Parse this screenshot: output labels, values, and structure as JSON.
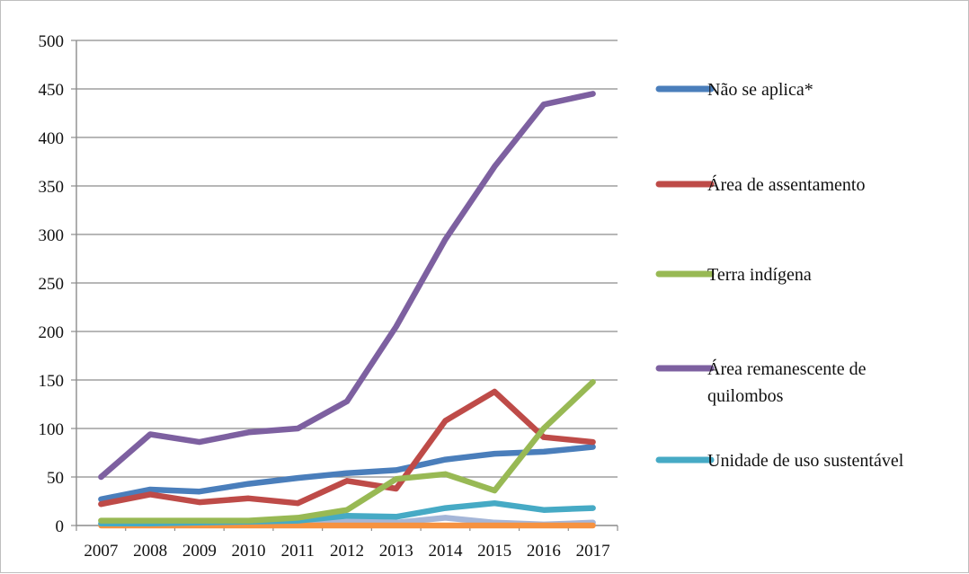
{
  "chart_data": {
    "type": "line",
    "title": "",
    "xlabel": "",
    "ylabel": "",
    "x": [
      "2007",
      "2008",
      "2009",
      "2010",
      "2011",
      "2012",
      "2013",
      "2014",
      "2015",
      "2016",
      "2017"
    ],
    "ylim": [
      0,
      500
    ],
    "yticks": [
      0,
      50,
      100,
      150,
      200,
      250,
      300,
      350,
      400,
      450,
      500
    ],
    "grid": true,
    "legend_position": "right",
    "series": [
      {
        "name": "Não se aplica*",
        "color": "#4a7ebb",
        "values": [
          27,
          37,
          35,
          43,
          49,
          54,
          57,
          68,
          74,
          76,
          81
        ]
      },
      {
        "name": "Área de assentamento",
        "color": "#be4b48",
        "values": [
          22,
          32,
          24,
          28,
          23,
          46,
          38,
          108,
          138,
          91,
          86
        ]
      },
      {
        "name": "Terra indígena",
        "color": "#98b954",
        "values": [
          5,
          5,
          5,
          5,
          8,
          16,
          48,
          53,
          36,
          100,
          148
        ]
      },
      {
        "name": "Área remanescente de quilombos",
        "legend_lines": [
          "Área remanescente de",
          "quilombos"
        ],
        "color": "#7d60a0",
        "values": [
          50,
          94,
          86,
          96,
          100,
          128,
          205,
          295,
          370,
          434,
          445
        ]
      },
      {
        "name": "Unidade de uso sustentável",
        "color": "#46aac5",
        "values": [
          2,
          2,
          3,
          4,
          5,
          10,
          9,
          18,
          23,
          16,
          18
        ]
      },
      {
        "color": "#f69240",
        "values": [
          0,
          0,
          0,
          0,
          0,
          0,
          0,
          0,
          0,
          0,
          0
        ]
      },
      {
        "color": "#a5b6d8",
        "values": [
          1,
          1,
          1,
          1,
          2,
          5,
          3,
          8,
          3,
          1,
          3
        ]
      }
    ]
  }
}
